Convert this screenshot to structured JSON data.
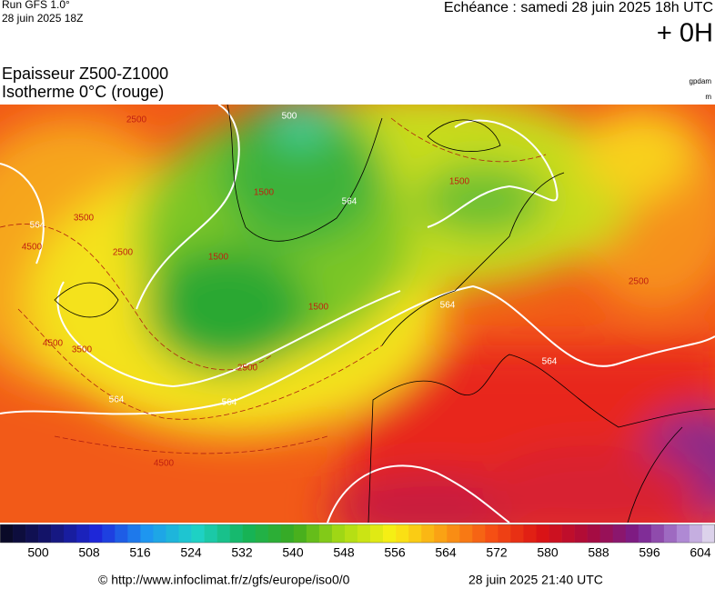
{
  "header": {
    "run": "Run GFS 1.0°",
    "run_date": "28 juin 2025 18Z",
    "echeance": "Echéance : samedi 28 juin 2025 18h UTC",
    "lead": "+ 0H",
    "title_1": "Epaisseur Z500-Z1000",
    "title_2": "Isotherme 0°C (rouge)",
    "unit_1": "gpdam",
    "unit_2": "m"
  },
  "map": {
    "contour_labels": [
      "564",
      "564",
      "564",
      "564",
      "564",
      "564",
      "2500",
      "2500",
      "2500",
      "2500",
      "1500",
      "1500",
      "1500",
      "1500",
      "3500",
      "3500",
      "4500",
      "4500",
      "4500",
      "500"
    ]
  },
  "legend": {
    "labels": [
      500,
      508,
      516,
      524,
      532,
      540,
      548,
      556,
      564,
      572,
      580,
      588,
      596,
      604
    ]
  },
  "footer": {
    "url": "© http://www.infoclimat.fr/z/gfs/europe/iso0/0",
    "generated": "28 juin 2025 21:40 UTC"
  }
}
